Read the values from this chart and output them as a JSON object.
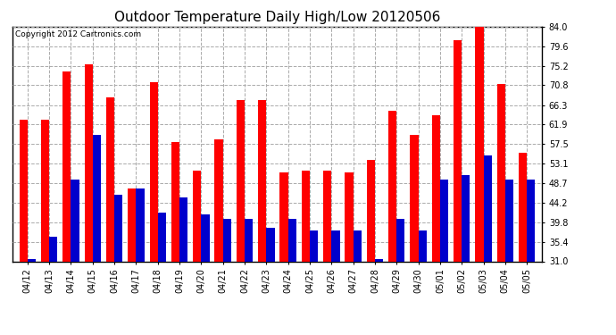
{
  "title": "Outdoor Temperature Daily High/Low 20120506",
  "copyright": "Copyright 2012 Cartronics.com",
  "ylim": [
    31.0,
    84.0
  ],
  "yticks": [
    31.0,
    35.4,
    39.8,
    44.2,
    48.7,
    53.1,
    57.5,
    61.9,
    66.3,
    70.8,
    75.2,
    79.6,
    84.0
  ],
  "categories": [
    "04/12",
    "04/13",
    "04/14",
    "04/15",
    "04/16",
    "04/17",
    "04/18",
    "04/19",
    "04/20",
    "04/21",
    "04/22",
    "04/23",
    "04/24",
    "04/25",
    "04/26",
    "04/27",
    "04/28",
    "04/29",
    "04/30",
    "05/01",
    "05/02",
    "05/03",
    "05/04",
    "05/05"
  ],
  "highs": [
    63.0,
    63.0,
    74.0,
    75.5,
    68.0,
    47.5,
    71.5,
    58.0,
    51.5,
    58.5,
    67.5,
    67.5,
    51.0,
    51.5,
    51.5,
    51.0,
    54.0,
    65.0,
    59.5,
    64.0,
    81.0,
    84.0,
    71.0,
    55.5
  ],
  "lows": [
    31.5,
    36.5,
    49.5,
    59.5,
    46.0,
    47.5,
    42.0,
    45.5,
    41.5,
    40.5,
    40.5,
    38.5,
    40.5,
    38.0,
    38.0,
    38.0,
    31.5,
    40.5,
    38.0,
    49.5,
    50.5,
    55.0,
    49.5,
    49.5
  ],
  "high_color": "#ff0000",
  "low_color": "#0000cc",
  "background_color": "#ffffff",
  "grid_color": "#aaaaaa",
  "title_fontsize": 11,
  "tick_fontsize": 7,
  "copyright_fontsize": 6.5,
  "bar_width": 0.38
}
